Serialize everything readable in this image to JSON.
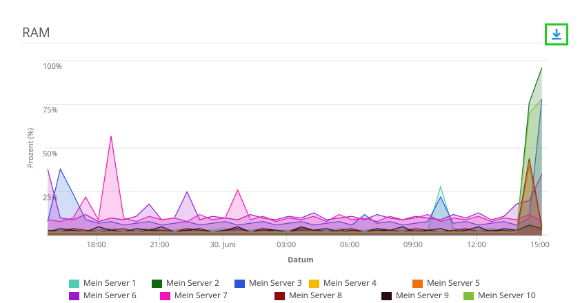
{
  "header": {
    "title": "RAM"
  },
  "chart_data": {
    "type": "area",
    "x_label": "Datum",
    "y_label": "Prozent (%)",
    "x": [
      15.7,
      16.3,
      16.9,
      17.5,
      18.1,
      18.7,
      19.3,
      19.9,
      20.5,
      21.1,
      21.7,
      22.3,
      22.9,
      23.5,
      24.1,
      24.7,
      25.3,
      25.9,
      26.5,
      27.1,
      27.7,
      28.3,
      28.9,
      29.5,
      30.1,
      30.7,
      31.3,
      31.9,
      32.5,
      33.1,
      33.7,
      34.3,
      34.9,
      35.5,
      36.1,
      36.7,
      37.3,
      37.9,
      38.5,
      39.1
    ],
    "xlim": [
      15.6,
      39.4
    ],
    "xticks": [
      {
        "value": 18,
        "label": "18:00"
      },
      {
        "value": 21,
        "label": "21:00"
      },
      {
        "value": 24,
        "label": "30. Juni"
      },
      {
        "value": 27,
        "label": "03:00"
      },
      {
        "value": 30,
        "label": "06:00"
      },
      {
        "value": 33,
        "label": "09:00"
      },
      {
        "value": 36,
        "label": "12:00"
      },
      {
        "value": 39,
        "label": "15:00"
      }
    ],
    "ylim": [
      0,
      100
    ],
    "yticks": [
      {
        "value": 25,
        "label": "25%"
      },
      {
        "value": 50,
        "label": "50%"
      },
      {
        "value": 75,
        "label": "75%"
      },
      {
        "value": 100,
        "label": "100%"
      }
    ],
    "grid": true,
    "series": [
      {
        "name": "Mein Server 1",
        "color": "#4ecdb4",
        "values": [
          3,
          3,
          4,
          3,
          3,
          4,
          3,
          3,
          4,
          3,
          3,
          4,
          3,
          3,
          4,
          3,
          3,
          4,
          3,
          3,
          4,
          3,
          3,
          4,
          3,
          3,
          4,
          3,
          3,
          4,
          3,
          28,
          4,
          3,
          3,
          4,
          3,
          3,
          5,
          3
        ]
      },
      {
        "name": "Mein Server 2",
        "color": "#0b6b0b",
        "values": [
          2,
          2,
          3,
          2,
          2,
          3,
          2,
          2,
          3,
          2,
          2,
          3,
          2,
          2,
          3,
          2,
          2,
          3,
          2,
          2,
          3,
          2,
          2,
          3,
          2,
          2,
          3,
          2,
          2,
          3,
          2,
          2,
          3,
          2,
          2,
          3,
          2,
          2,
          76,
          96
        ]
      },
      {
        "name": "Mein Server 3",
        "color": "#2a55d8",
        "values": [
          8,
          38,
          24,
          9,
          7,
          8,
          6,
          7,
          8,
          6,
          7,
          8,
          6,
          7,
          8,
          6,
          7,
          8,
          6,
          7,
          8,
          6,
          7,
          8,
          6,
          12,
          7,
          8,
          6,
          7,
          8,
          22,
          7,
          8,
          6,
          7,
          8,
          6,
          10,
          78
        ]
      },
      {
        "name": "Mein Server 4",
        "color": "#f6b900",
        "values": [
          1,
          1,
          1,
          1,
          1,
          1,
          1,
          1,
          1,
          1,
          1,
          1,
          1,
          1,
          1,
          1,
          1,
          1,
          1,
          1,
          1,
          1,
          1,
          1,
          1,
          1,
          1,
          1,
          1,
          1,
          1,
          1,
          1,
          1,
          1,
          1,
          1,
          1,
          2,
          6
        ]
      },
      {
        "name": "Mein Server 5",
        "color": "#f07010",
        "values": [
          1,
          1,
          1,
          1,
          1,
          1,
          1,
          1,
          1,
          1,
          1,
          1,
          1,
          1,
          1,
          1,
          1,
          1,
          1,
          1,
          1,
          1,
          1,
          1,
          1,
          1,
          1,
          1,
          1,
          1,
          1,
          1,
          1,
          1,
          1,
          1,
          1,
          1,
          40,
          3
        ]
      },
      {
        "name": "Mein Server 6",
        "color": "#9b19c8",
        "values": [
          38,
          10,
          9,
          12,
          8,
          10,
          9,
          11,
          18,
          9,
          10,
          25,
          9,
          11,
          10,
          9,
          12,
          10,
          9,
          11,
          10,
          13,
          9,
          10,
          11,
          9,
          12,
          10,
          9,
          11,
          10,
          9,
          12,
          10,
          13,
          9,
          11,
          18,
          20,
          35
        ]
      },
      {
        "name": "Mein Server 7",
        "color": "#f013b6",
        "values": [
          9,
          8,
          10,
          22,
          9,
          57,
          10,
          8,
          11,
          9,
          10,
          8,
          12,
          9,
          10,
          26,
          9,
          11,
          8,
          10,
          9,
          11,
          8,
          12,
          9,
          10,
          8,
          11,
          9,
          10,
          12,
          8,
          10,
          9,
          11,
          8,
          10,
          9,
          12,
          8
        ]
      },
      {
        "name": "Mein Server 8",
        "color": "#8b0a0a",
        "values": [
          3,
          2,
          4,
          3,
          2,
          3,
          4,
          2,
          3,
          3,
          2,
          4,
          3,
          2,
          3,
          4,
          2,
          3,
          3,
          2,
          4,
          3,
          2,
          3,
          4,
          2,
          3,
          3,
          2,
          4,
          3,
          2,
          3,
          4,
          2,
          3,
          3,
          2,
          44,
          5
        ]
      },
      {
        "name": "Mein Server 9",
        "color": "#2a0a14",
        "values": [
          2,
          4,
          3,
          2,
          5,
          3,
          2,
          4,
          3,
          5,
          2,
          3,
          4,
          2,
          3,
          5,
          2,
          4,
          3,
          2,
          5,
          3,
          4,
          2,
          3,
          2,
          4,
          3,
          5,
          2,
          3,
          4,
          2,
          3,
          5,
          2,
          4,
          3,
          6,
          4
        ]
      },
      {
        "name": "Mein Server 10",
        "color": "#7dc03c",
        "values": [
          2,
          2,
          2,
          2,
          2,
          2,
          2,
          2,
          2,
          2,
          2,
          2,
          2,
          2,
          2,
          2,
          2,
          2,
          2,
          2,
          2,
          2,
          2,
          2,
          2,
          2,
          2,
          2,
          2,
          2,
          2,
          2,
          2,
          2,
          2,
          2,
          2,
          2,
          70,
          78
        ]
      }
    ]
  }
}
